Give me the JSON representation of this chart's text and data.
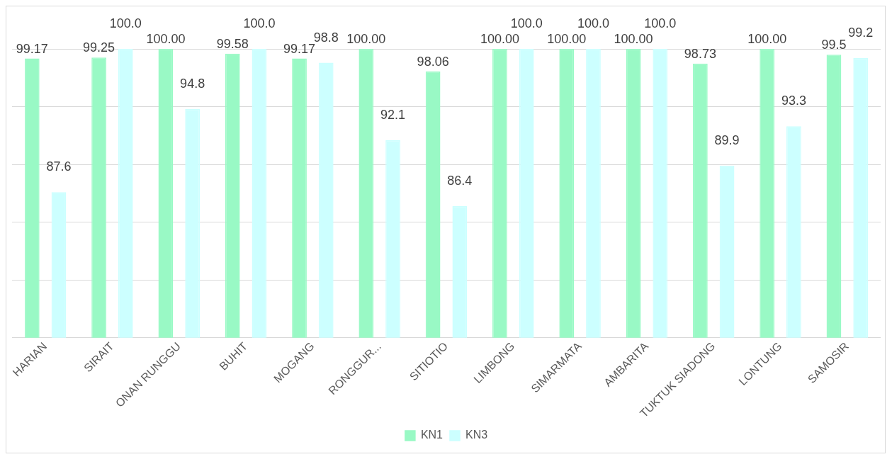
{
  "chart_data": {
    "type": "bar",
    "categories": [
      "HARIAN",
      "SIRAIT",
      "ONAN RUNGGU",
      "BUHIT",
      "MOGANG",
      "RONGGUR...",
      "SITIOTIO",
      "LIMBONG",
      "SIMARMATA",
      "AMBARITA",
      "TUKTUK SIADONG",
      "LONTUNG",
      "SAMOSIR"
    ],
    "series": [
      {
        "name": "KN1",
        "color": "#99f9c5",
        "values": [
          99.17,
          99.25,
          100,
          99.58,
          99.17,
          100,
          98.06,
          100,
          100,
          100,
          98.73,
          100,
          99.5
        ],
        "value_labels": [
          "99.17",
          "99.25",
          "100.00",
          "99.58",
          "99.17",
          "100.00",
          "98.06",
          "100.00",
          "100.00",
          "100.00",
          "98.73",
          "100.00",
          "99.5"
        ]
      },
      {
        "name": "KN3",
        "color": "#ccffff",
        "values": [
          87.6,
          100,
          94.8,
          100,
          98.8,
          92.1,
          86.4,
          100,
          100,
          100,
          89.9,
          93.3,
          99.2
        ],
        "value_labels": [
          "87.6",
          "100.0",
          "94.8",
          "100.0",
          "98.8",
          "92.1",
          "86.4",
          "100.0",
          "100.0",
          "100.0",
          "89.9",
          "93.3",
          "99.2"
        ]
      }
    ],
    "ylim": [
      75,
      100
    ],
    "tick_labels": "x",
    "grid": "y",
    "legend": "bottom"
  }
}
